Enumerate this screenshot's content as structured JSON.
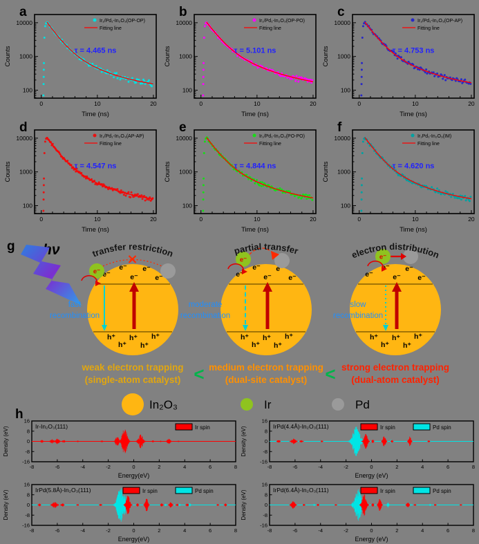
{
  "panel_labels": {
    "a": "a",
    "b": "b",
    "c": "c",
    "d": "d",
    "e": "e",
    "f": "f",
    "g": "g",
    "h": "h"
  },
  "colors": {
    "background": "#818181",
    "axis": "#000000",
    "fit_line": "#ff0000",
    "tau_text": "#2121ff",
    "sphere": "#ffb612",
    "ir_atom": "#8fc31f",
    "pd_atom": "#9a9a9a",
    "recomb_blue": "#1f8fff",
    "separator_green": "#00b44a",
    "ir_spin": "#ff0000",
    "pd_spin": "#00e5e5"
  },
  "chart_data": [
    {
      "id": "a",
      "type": "scatter",
      "kind": "tcspc_decay",
      "legend": "Ir₁/Pd₁-In₂O₃(OP-OP)",
      "fit_label": "Fitting line",
      "tau_ns": 4.465,
      "tau_label": "τ = 4.465 ns",
      "point_color": "#00e0e0",
      "fit_color": "#ff0000",
      "tau_color": "#2121ff",
      "xlabel": "Time (ns)",
      "ylabel": "Counts",
      "xticks": [
        0,
        10,
        20
      ],
      "yticks": [
        100,
        1000,
        10000
      ],
      "xlim": [
        -1.2,
        20.5
      ],
      "ylog": true,
      "decay_model": {
        "A1": 8800,
        "t1": 1.7,
        "A2": 1550,
        "t2": 5.5,
        "bg": 105,
        "t0": 1.0
      },
      "seed": 11
    },
    {
      "id": "b",
      "type": "scatter",
      "kind": "tcspc_decay",
      "legend": "Ir₁/Pd₁-In₂O₃(OP-PO)",
      "fit_label": "Fitting line",
      "tau_ns": 5.101,
      "tau_label": "τ = 5.101 ns",
      "point_color": "#ff00ff",
      "fit_color": "#ff0000",
      "tau_color": "#2121ff",
      "xlabel": "Time (ns)",
      "ylabel": "Counts",
      "xticks": [
        0,
        10,
        20
      ],
      "yticks": [
        100,
        1000,
        10000
      ],
      "xlim": [
        -1.2,
        20.5
      ],
      "ylog": true,
      "decay_model": {
        "A1": 8700,
        "t1": 1.8,
        "A2": 1600,
        "t2": 6.3,
        "bg": 100,
        "t0": 1.0
      },
      "seed": 22
    },
    {
      "id": "c",
      "type": "scatter",
      "kind": "tcspc_decay",
      "legend": "Ir₁/Pd₁-In₂O₃(OP-AP)",
      "fit_label": "Fitting line",
      "tau_ns": 4.753,
      "tau_label": "τ = 4.753 ns",
      "point_color": "#2828c8",
      "fit_color": "#ff0000",
      "tau_color": "#2121ff",
      "xlabel": "Time (ns)",
      "ylabel": "Counts",
      "xticks": [
        0,
        10,
        20
      ],
      "yticks": [
        100,
        1000,
        10000
      ],
      "xlim": [
        -1.2,
        20.5
      ],
      "ylog": true,
      "decay_model": {
        "A1": 8800,
        "t1": 1.75,
        "A2": 1570,
        "t2": 5.9,
        "bg": 103,
        "t0": 1.0
      },
      "seed": 33
    },
    {
      "id": "d",
      "type": "scatter",
      "kind": "tcspc_decay",
      "legend": "Ir₁/Pd₁-In₂O₃(AP-AP)",
      "fit_label": "Fitting line",
      "tau_ns": 4.547,
      "tau_label": "τ = 4.547 ns",
      "point_color": "#e81212",
      "fit_color": "#ff0000",
      "tau_color": "#2121ff",
      "xlabel": "Time (ns)",
      "ylabel": "Counts",
      "xticks": [
        0,
        10,
        20
      ],
      "yticks": [
        100,
        1000,
        10000
      ],
      "xlim": [
        -1.2,
        20.5
      ],
      "ylog": true,
      "decay_model": {
        "A1": 8800,
        "t1": 1.7,
        "A2": 1560,
        "t2": 5.6,
        "bg": 104,
        "t0": 1.0
      },
      "seed": 44
    },
    {
      "id": "e",
      "type": "scatter",
      "kind": "tcspc_decay",
      "legend": "Ir₁/Pd₁-In₂O₃(PO-PO)",
      "fit_label": "Fitting line",
      "tau_ns": 4.844,
      "tau_label": "τ = 4.844 ns",
      "point_color": "#17dd17",
      "fit_color": "#ff0000",
      "tau_color": "#2121ff",
      "xlabel": "Time (ns)",
      "ylabel": "Counts",
      "xticks": [
        0,
        10,
        20
      ],
      "yticks": [
        100,
        1000,
        10000
      ],
      "xlim": [
        -1.2,
        20.5
      ],
      "ylog": true,
      "decay_model": {
        "A1": 8750,
        "t1": 1.75,
        "A2": 1580,
        "t2": 6.0,
        "bg": 102,
        "t0": 1.0
      },
      "seed": 55
    },
    {
      "id": "f",
      "type": "scatter",
      "kind": "tcspc_decay",
      "legend": "Ir₁Pd₁-In₂O₃(IM)",
      "fit_label": "Fitting line",
      "tau_ns": 4.62,
      "tau_label": "τ = 4.620 ns",
      "point_color": "#00a2a2",
      "fit_color": "#ff0000",
      "tau_color": "#2121ff",
      "xlabel": "Time (ns)",
      "ylabel": "Counts",
      "xticks": [
        0,
        10,
        20
      ],
      "yticks": [
        100,
        1000,
        10000
      ],
      "xlim": [
        -1.2,
        20.5
      ],
      "ylog": true,
      "decay_model": {
        "A1": 8800,
        "t1": 1.72,
        "A2": 1560,
        "t2": 5.7,
        "bg": 104,
        "t0": 1.0
      },
      "seed": 66
    },
    {
      "id": "h1",
      "type": "area",
      "kind": "dos",
      "title": "Ir-In₂O₃(111)",
      "xlabel": "Energy(eV)",
      "ylabel": "Density (eV)",
      "xlim": [
        -8,
        8
      ],
      "ylim": [
        -16,
        16
      ],
      "xticks": [
        -8,
        -6,
        -4,
        -2,
        0,
        2,
        4,
        6,
        8
      ],
      "yticks": [
        16,
        8,
        0,
        -8,
        -16
      ],
      "seed": 71,
      "series": [
        {
          "name": "Ir spin",
          "color": "#ff0000",
          "peaks": [
            [
              -7.2,
              0.15,
              1.2
            ],
            [
              -6.4,
              0.2,
              1.8
            ],
            [
              -6.0,
              0.22,
              2.2
            ],
            [
              -5.5,
              0.15,
              1.2
            ],
            [
              -4.4,
              0.1,
              0.6
            ],
            [
              -2.5,
              0.12,
              0.8
            ],
            [
              -1.3,
              0.18,
              5
            ],
            [
              -0.72,
              0.3,
              11
            ],
            [
              0.55,
              0.28,
              5.5
            ],
            [
              1.5,
              0.1,
              0.9
            ],
            [
              2.1,
              0.1,
              0.9
            ],
            [
              2.75,
              0.18,
              2.4
            ],
            [
              3.5,
              0.1,
              0.6
            ]
          ]
        }
      ]
    },
    {
      "id": "h2",
      "type": "area",
      "kind": "dos",
      "title": "IrPd(4.4Å)-In₂O₃(111)",
      "xlabel": "Energy (eV)",
      "ylabel": "Density (eV)",
      "xlim": [
        -8,
        8
      ],
      "ylim": [
        -16,
        16
      ],
      "xticks": [
        -8,
        -6,
        -4,
        -2,
        0,
        2,
        4,
        6,
        8
      ],
      "yticks": [
        16,
        8,
        0,
        -8,
        -16
      ],
      "seed": 72,
      "series": [
        {
          "name": "Ir spin",
          "color": "#ff0000",
          "peaks": [
            [
              -7.3,
              0.15,
              1.2
            ],
            [
              -6.1,
              0.25,
              2.2
            ],
            [
              -5.5,
              0.15,
              1.2
            ],
            [
              -3.9,
              0.1,
              0.7
            ],
            [
              -0.45,
              0.22,
              6.5
            ],
            [
              0.1,
              0.1,
              1.6
            ],
            [
              1.0,
              0.16,
              5
            ],
            [
              1.6,
              0.1,
              1.2
            ],
            [
              3.0,
              0.14,
              4
            ],
            [
              4.5,
              0.1,
              1
            ]
          ]
        },
        {
          "name": "Pd spin",
          "color": "#00e5e5",
          "peaks": [
            [
              -1.2,
              0.42,
              12
            ],
            [
              -0.55,
              0.15,
              3
            ],
            [
              1.55,
              0.08,
              1.6
            ],
            [
              4.6,
              0.08,
              0.9
            ]
          ]
        }
      ]
    },
    {
      "id": "h3",
      "type": "area",
      "kind": "dos",
      "title": "IrPd(5.8Å)-In₂O₃(111)",
      "xlabel": "Energy(eV)",
      "ylabel": "Density (eV)",
      "xlim": [
        -8,
        8
      ],
      "ylim": [
        -16,
        16
      ],
      "xticks": [
        -8,
        -6,
        -4,
        -2,
        0,
        2,
        4,
        6,
        8
      ],
      "yticks": [
        16,
        8,
        0,
        -8,
        -16
      ],
      "seed": 73,
      "series": [
        {
          "name": "Ir spin",
          "color": "#ff0000",
          "peaks": [
            [
              -7.4,
              0.12,
              1.2
            ],
            [
              -6.2,
              0.28,
              2.4
            ],
            [
              -5.6,
              0.15,
              1.4
            ],
            [
              -4.4,
              0.1,
              0.7
            ],
            [
              -2.6,
              0.12,
              0.9
            ],
            [
              -0.45,
              0.22,
              8
            ],
            [
              0.3,
              0.1,
              1.4
            ],
            [
              1.0,
              0.16,
              5.5
            ],
            [
              2.2,
              0.12,
              1.6
            ],
            [
              2.9,
              0.16,
              2.2
            ],
            [
              3.4,
              0.1,
              1.2
            ],
            [
              4.2,
              0.12,
              1.4
            ],
            [
              6.6,
              0.1,
              0.9
            ],
            [
              7.2,
              0.12,
              1.2
            ]
          ]
        },
        {
          "name": "Pd spin",
          "color": "#00e5e5",
          "peaks": [
            [
              -1.05,
              0.38,
              14
            ],
            [
              -0.72,
              0.2,
              8
            ],
            [
              2.5,
              0.08,
              1.1
            ],
            [
              3.6,
              0.08,
              1.1
            ],
            [
              4.4,
              0.1,
              1.4
            ],
            [
              7.3,
              0.08,
              0.9
            ]
          ]
        }
      ]
    },
    {
      "id": "h4",
      "type": "area",
      "kind": "dos",
      "title": "IrPd(6.4Å)-In₂O₃(111)",
      "xlabel": "Energy (eV)",
      "ylabel": "Density (eV)",
      "xlim": [
        -8,
        8
      ],
      "ylim": [
        -16,
        16
      ],
      "xticks": [
        -8,
        -6,
        -4,
        -2,
        0,
        2,
        4,
        6,
        8
      ],
      "yticks": [
        16,
        8,
        0,
        -8,
        -16
      ],
      "seed": 74,
      "series": [
        {
          "name": "Ir spin",
          "color": "#ff0000",
          "peaks": [
            [
              -6.15,
              0.22,
              3
            ],
            [
              -5.3,
              0.1,
              0.9
            ],
            [
              -4.2,
              0.1,
              0.9
            ],
            [
              -2.8,
              0.1,
              0.7
            ],
            [
              -0.58,
              0.24,
              9
            ],
            [
              0.1,
              0.1,
              1.6
            ],
            [
              0.65,
              0.16,
              5
            ],
            [
              2.85,
              0.14,
              2
            ],
            [
              3.4,
              0.1,
              0.9
            ],
            [
              5.0,
              0.1,
              0.7
            ],
            [
              7.0,
              0.1,
              0.7
            ]
          ]
        },
        {
          "name": "Pd spin",
          "color": "#00e5e5",
          "peaks": [
            [
              -4.5,
              0.08,
              0.9
            ],
            [
              -1.05,
              0.4,
              13
            ],
            [
              1.3,
              0.1,
              2.2
            ],
            [
              3.1,
              0.08,
              0.9
            ],
            [
              4.6,
              0.08,
              0.9
            ]
          ]
        }
      ]
    }
  ],
  "g": {
    "label": "g",
    "hv": "hν",
    "electron": "e⁻",
    "hole": "h⁺",
    "spheres": [
      {
        "arc_text": "transfer restriction",
        "recomb_line1": "fast",
        "recomb_line2": "recombination",
        "transfer": "blocked"
      },
      {
        "arc_text": "partial transfer",
        "recomb_line1": "moderate",
        "recomb_line2": "recombination",
        "transfer": "partial"
      },
      {
        "arc_text": "electron distribution",
        "recomb_line1": "slow",
        "recomb_line2": "recombination",
        "transfer": "full"
      }
    ],
    "captions": [
      {
        "line1": "weak electron trapping",
        "line2": "(single-atom catalyst)",
        "color": "#e2a60e"
      },
      {
        "line1": "medium electron trapping",
        "line2": "(dual-site catalyst)",
        "color": "#ff9000"
      },
      {
        "line1": "strong electron trapping",
        "line2": "(dual-atom catalyst)",
        "color": "#ff2200"
      }
    ],
    "separator": "<",
    "legend": [
      {
        "label": "In₂O₃",
        "color": "#ffb612",
        "r": 16
      },
      {
        "label": "Ir",
        "color": "#8fc31f",
        "r": 9
      },
      {
        "label": "Pd",
        "color": "#9a9a9a",
        "r": 9
      }
    ]
  }
}
